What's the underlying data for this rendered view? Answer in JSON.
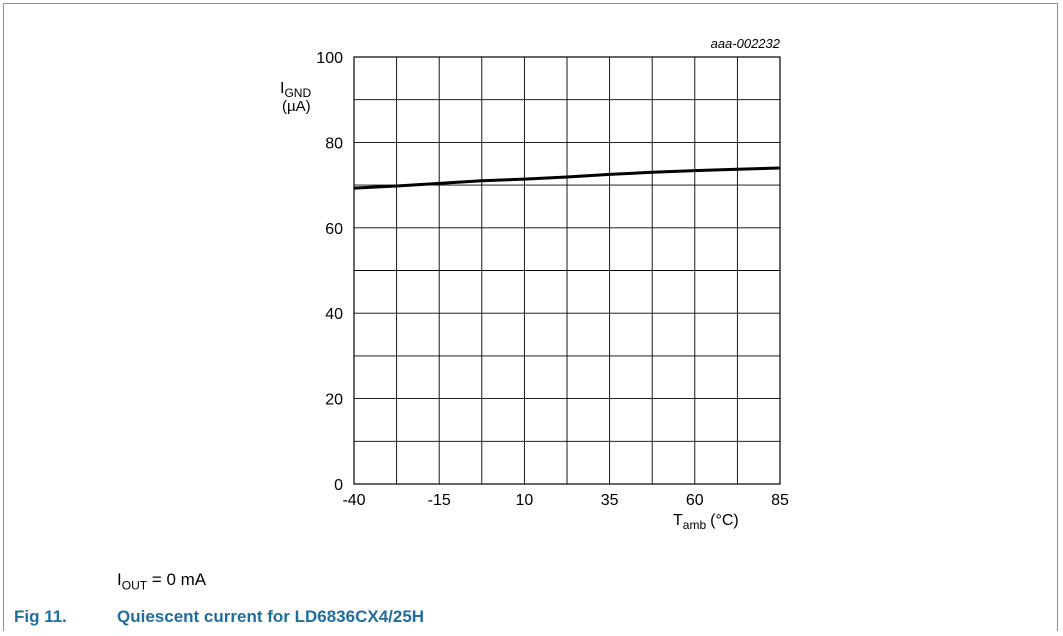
{
  "chart_data": {
    "type": "line",
    "id_code": "aaa-002232",
    "ylabel": {
      "main": "I",
      "sub": "GND",
      "unit": "(µA)"
    },
    "xlabel": {
      "main": "T",
      "sub": "amb",
      "unit": "(°C)"
    },
    "xlim": [
      -40,
      85
    ],
    "ylim": [
      0,
      100
    ],
    "x_ticks": [
      -40,
      -15,
      10,
      35,
      60,
      85
    ],
    "x_gridlines": [
      -40,
      -27.5,
      -15,
      -2.5,
      10,
      22.5,
      35,
      47.5,
      60,
      72.5,
      85
    ],
    "y_ticks": [
      0,
      20,
      40,
      60,
      80,
      100
    ],
    "y_gridlines": [
      0,
      10,
      20,
      30,
      40,
      50,
      60,
      70,
      80,
      90,
      100
    ],
    "grid": true,
    "series": [
      {
        "x": [
          -40,
          -27.5,
          -15,
          -2.5,
          10,
          22.5,
          35,
          47.5,
          60,
          72.5,
          85
        ],
        "y": [
          69.3,
          69.8,
          70.4,
          71.0,
          71.4,
          71.9,
          72.5,
          73.0,
          73.4,
          73.7,
          74.0
        ]
      }
    ]
  },
  "condition": {
    "main": "I",
    "sub": "OUT",
    "rest": " = 0 mA"
  },
  "caption": {
    "number": "Fig 11.",
    "title": "Quiescent current for LD6836CX4/25H"
  }
}
